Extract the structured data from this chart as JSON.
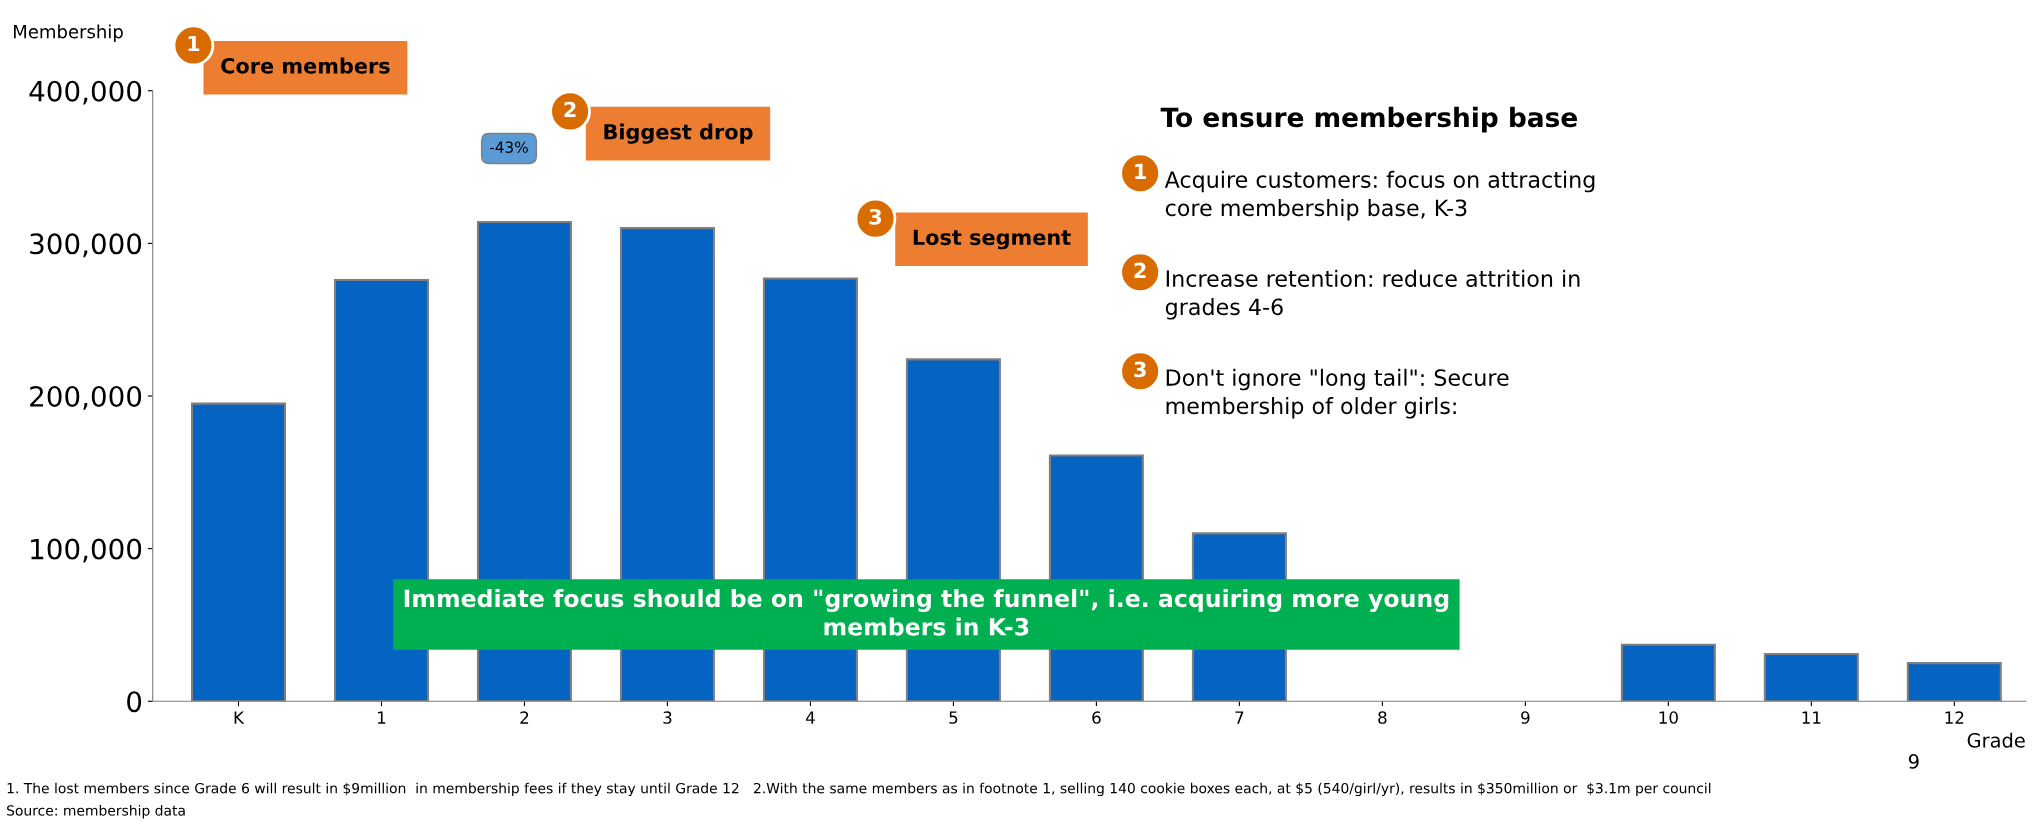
{
  "chart_data": {
    "type": "bar",
    "ylabel": "Membership",
    "xlabel": "Grade",
    "categories": [
      "K",
      "1",
      "2",
      "3",
      "4",
      "5",
      "6",
      "7",
      "8",
      "9",
      "10",
      "11",
      "12"
    ],
    "values": [
      195000,
      276000,
      314000,
      310000,
      277000,
      224000,
      161000,
      110000,
      null,
      null,
      37000,
      31000,
      25000
    ],
    "color": "#0563c1",
    "ylim": [
      0,
      400000
    ],
    "yticks": [
      {
        "value": 0,
        "label": "0"
      },
      {
        "value": 100000,
        "label": "100,000"
      },
      {
        "value": 200000,
        "label": "200,000"
      },
      {
        "value": 300000,
        "label": "300,000"
      },
      {
        "value": 400000,
        "label": "400,000"
      }
    ],
    "grid": false,
    "annotations": [
      "1",
      "Core members",
      "2",
      "Biggest drop",
      "-43%",
      "3",
      "Lost segment",
      "To ensure membership base",
      "1",
      "Acquire customers: focus on attracting\ncore membership base, K-3",
      "2",
      "Increase retention: reduce attrition in\ngrades 4-6",
      "3",
      "Don't ignore \"long tail\": Secure\nmembership of older girls:",
      "Immediate focus should be on \"growing the funnel\", i.e. acquiring more young\nmembers in K-3",
      "1. The lost members since Grade 6 will result in $9million  in membership fees if they stay until Grade 12   2.With the same members as in footnote 1, selling 140 cookie boxes each, at $5 (540/girl/yr), results in $350million or  $3.1m per council",
      "Source: membership data",
      "9"
    ]
  }
}
